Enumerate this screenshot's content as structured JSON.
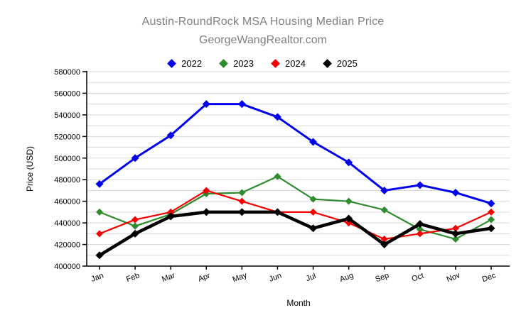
{
  "page": {
    "background": "#ffffff"
  },
  "header": {
    "title": "Austin-RoundRock MSA Housing Median Price",
    "subtitle": "GeorgeWangRealtor.com",
    "title_color": "#808080"
  },
  "chart_data": {
    "type": "line",
    "title": "Austin-RoundRock MSA Housing Median Price",
    "subtitle": "GeorgeWangRealtor.com",
    "xlabel": "Month",
    "ylabel": "Price (USD)",
    "ylim": [
      400000,
      580000
    ],
    "yticks": [
      400000,
      420000,
      440000,
      460000,
      480000,
      500000,
      520000,
      540000,
      560000,
      580000
    ],
    "ygrid_step": 10000,
    "grid": true,
    "legend_position": "top-center",
    "marker": "diamond",
    "categories": [
      "Jan",
      "Feb",
      "Mar",
      "Apr",
      "May",
      "Jun",
      "Jul",
      "Aug",
      "Sep",
      "Oct",
      "Nov",
      "Dec"
    ],
    "series": [
      {
        "name": "2022",
        "color": "#0000ee",
        "line_width": 3,
        "marker_size": 5.5,
        "values": [
          476000,
          500000,
          521000,
          550000,
          550000,
          538000,
          515000,
          496000,
          470000,
          475000,
          468000,
          458000
        ]
      },
      {
        "name": "2023",
        "color": "#2e8b2e",
        "line_width": 2.2,
        "marker_size": 5,
        "values": [
          450000,
          437000,
          448000,
          467000,
          468000,
          483000,
          462000,
          460000,
          452000,
          434000,
          425000,
          443000
        ]
      },
      {
        "name": "2024",
        "color": "#f40000",
        "line_width": 2.2,
        "marker_size": 5,
        "values": [
          430000,
          443000,
          450000,
          470000,
          460000,
          450000,
          450000,
          440000,
          425000,
          430000,
          435000,
          450000
        ]
      },
      {
        "name": "2025",
        "color": "#000000",
        "line_width": 4.5,
        "marker_size": 5.5,
        "values": [
          410000,
          430000,
          446000,
          450000,
          450000,
          450000,
          435000,
          444000,
          420000,
          439000,
          430000,
          435000
        ]
      }
    ],
    "colors": {
      "grid": "#d9d9d9",
      "axis": "#000000",
      "tick_text": "#000000"
    }
  }
}
